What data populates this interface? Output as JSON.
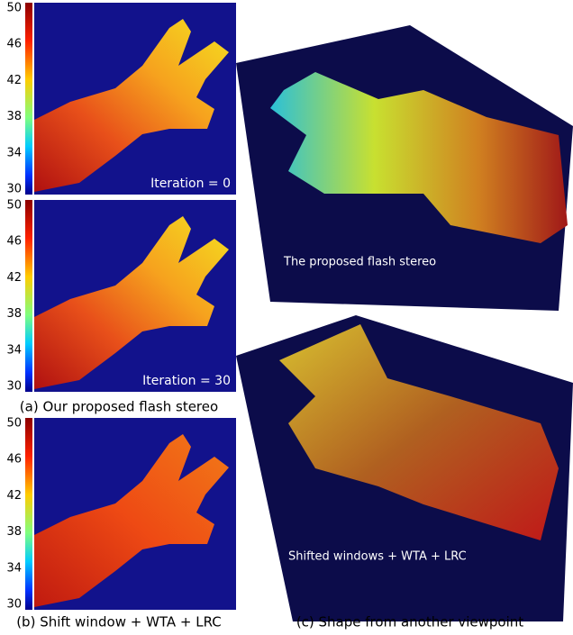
{
  "panels": [
    {
      "colorbar_ticks": [
        50,
        46,
        42,
        38,
        34,
        30
      ],
      "label": "Iteration = 0"
    },
    {
      "colorbar_ticks": [
        50,
        46,
        42,
        38,
        34,
        30
      ],
      "label": "Iteration = 30"
    },
    {
      "colorbar_ticks": [
        50,
        46,
        42,
        38,
        34,
        30
      ]
    }
  ],
  "captions": {
    "a": "(a) Our proposed flash stereo",
    "b": "(b) Shift window + WTA + LRC",
    "c": "(c) Shape from another viewpoint"
  },
  "views": [
    {
      "label": "The proposed flash stereo"
    },
    {
      "label": "Shifted windows + WTA + LRC"
    }
  ]
}
